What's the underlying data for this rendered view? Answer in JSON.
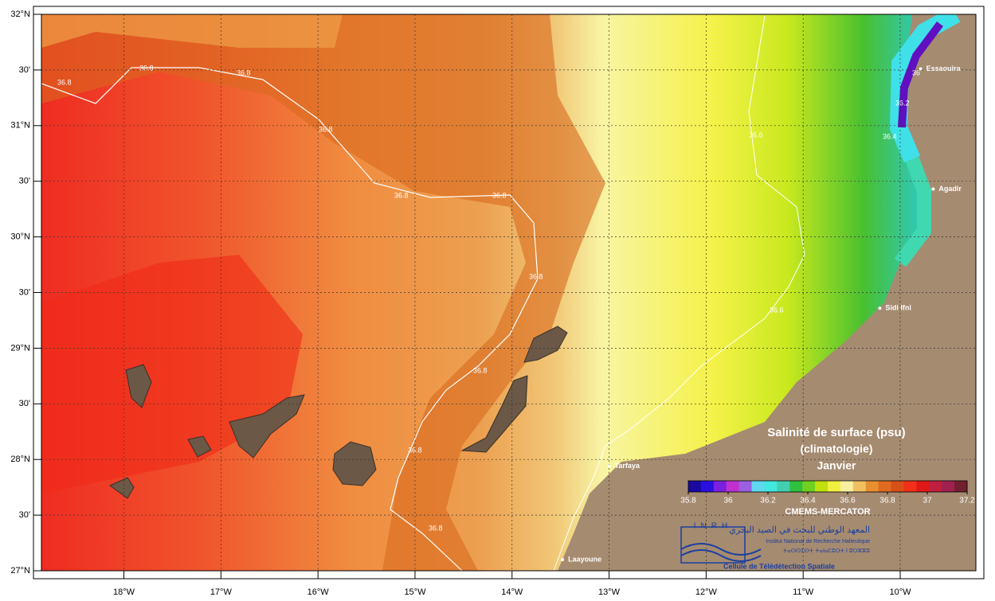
{
  "map": {
    "title": "Salinité de surface (psu)",
    "subtitle": "(climatologie)",
    "month": "Janvier",
    "source": "CMEMS-MERCATOR",
    "lon_range": [
      -18.85,
      -9.22
    ],
    "lat_range": [
      27,
      32
    ],
    "lat_ticks": [
      {
        "value": 32,
        "label": "32°N"
      },
      {
        "value": 31.5,
        "label": "30'"
      },
      {
        "value": 31,
        "label": "31°N"
      },
      {
        "value": 30.5,
        "label": "30'"
      },
      {
        "value": 30,
        "label": "30°N"
      },
      {
        "value": 29.5,
        "label": "30'"
      },
      {
        "value": 29,
        "label": "29°N"
      },
      {
        "value": 28.5,
        "label": "30'"
      },
      {
        "value": 28,
        "label": "28°N"
      },
      {
        "value": 27.5,
        "label": "30'"
      },
      {
        "value": 27,
        "label": "27°N"
      }
    ],
    "lon_ticks": [
      {
        "value": -18,
        "label": "18°W"
      },
      {
        "value": -17,
        "label": "17°W"
      },
      {
        "value": -16,
        "label": "16°W"
      },
      {
        "value": -15,
        "label": "15°W"
      },
      {
        "value": -14,
        "label": "14°W"
      },
      {
        "value": -13,
        "label": "13°W"
      },
      {
        "value": -12,
        "label": "12°W"
      },
      {
        "value": -11,
        "label": "11°W"
      },
      {
        "value": -10,
        "label": "10°W"
      }
    ],
    "cities": [
      {
        "name": "Essaouira",
        "lon": -9.79,
        "lat": 31.51
      },
      {
        "name": "Agadir",
        "lon": -9.66,
        "lat": 30.43
      },
      {
        "name": "Sidi Ifni",
        "lon": -10.21,
        "lat": 29.36
      },
      {
        "name": "Tarfaya",
        "lon": -13.0,
        "lat": 27.94
      },
      {
        "name": "Laayoune",
        "lon": -13.48,
        "lat": 27.1
      }
    ],
    "contour_labels": [
      "36.8",
      "36.8",
      "36.8",
      "36.8",
      "36.8",
      "36.8",
      "36.8",
      "36.8",
      "36.8",
      "36.8",
      "36.6",
      "36.6",
      "36.4",
      "36.2",
      "36"
    ],
    "colorbar": {
      "range": [
        35.8,
        37.2
      ],
      "ticks": [
        35.8,
        36,
        36.2,
        36.4,
        36.6,
        36.8,
        37,
        37.2
      ],
      "colors": [
        "#1a0aa0",
        "#2a10e0",
        "#7a20e0",
        "#c030d0",
        "#9a60e0",
        "#60d8f0",
        "#40e8e0",
        "#40d0b0",
        "#30c040",
        "#70d020",
        "#c0e010",
        "#f0f040",
        "#f8f0a0",
        "#f0c060",
        "#e89030",
        "#e06a20",
        "#d85018",
        "#f03018",
        "#e01818",
        "#c02040",
        "#a02050",
        "#702030"
      ]
    },
    "logo": {
      "acronym": "INRH",
      "arabic": "المعهد الوطني للبحث في الصيد البحري",
      "french": "Institut National de Recherche Halieutique",
      "tifinagh": "ⵜⴰⵙⵙⵉⵙⵜ ⵜⴰⵏⴰⵎⵓⵔⵜ ⵏ ⵓⵔⵣⵣⵓ",
      "unit": "Cellule de Télédétection Spatiale"
    }
  }
}
